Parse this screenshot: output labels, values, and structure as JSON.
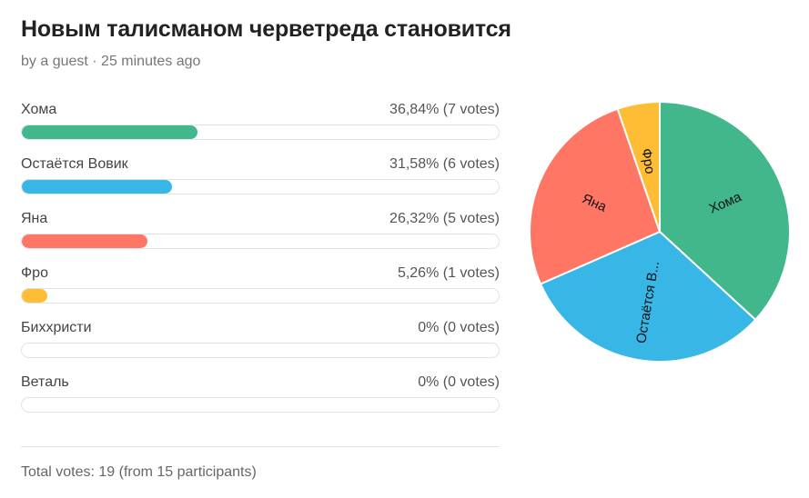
{
  "poll": {
    "title": "Новым талисманом черветреда становится",
    "meta": "by a guest · 25 minutes ago",
    "total": "Total votes: 19 (from 15 participants)"
  },
  "chart_data": {
    "type": "pie",
    "total_votes": 19,
    "participants": 15,
    "categories": [
      "Хома",
      "Остаётся Вовик",
      "Яна",
      "Фро",
      "Биххристи",
      "Веталь"
    ],
    "values": [
      7,
      6,
      5,
      1,
      0,
      0
    ],
    "percents": [
      36.84,
      31.58,
      26.32,
      5.26,
      0,
      0
    ],
    "stats_labels": [
      "36,84% (7 votes)",
      "31,58% (6 votes)",
      "26,32% (5 votes)",
      "5,26% (1 votes)",
      "0% (0 votes)",
      "0% (0 votes)"
    ],
    "pie_labels": [
      "Хома",
      "Остаётся В...",
      "Яна",
      "Фро",
      "",
      ""
    ],
    "colors": [
      "#41b78b",
      "#38b6e6",
      "#ff7664",
      "#ffbd35",
      "#cccccc",
      "#cccccc"
    ]
  }
}
